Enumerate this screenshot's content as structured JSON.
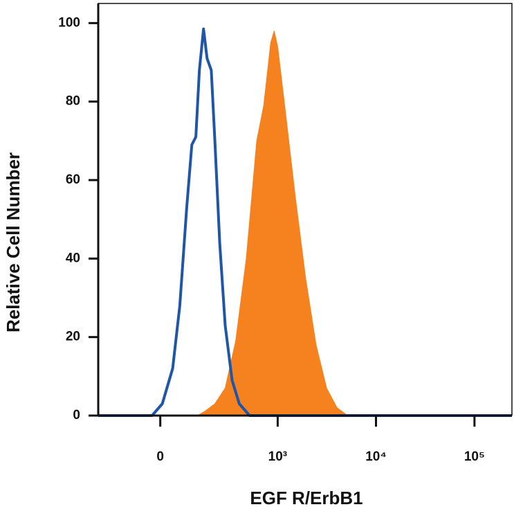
{
  "chart_data": {
    "type": "histogram-overlay",
    "x_label": "EGF R/ErbB1",
    "y_label": "Relative Cell Number",
    "xscale": "asinh",
    "xlim": [
      -260,
      240000
    ],
    "xticks": [
      0,
      {
        "value": 1000,
        "label": "10³"
      },
      {
        "value": 10000,
        "label": "10⁴"
      },
      {
        "value": 100000,
        "label": "10⁵"
      }
    ],
    "ylim": [
      0,
      105
    ],
    "yticks": [
      0,
      20,
      40,
      60,
      80,
      100
    ],
    "series": [
      {
        "color": "#f5821f",
        "fill": true,
        "x": [
          -260,
          126,
          158,
          213,
          280,
          365,
          473,
          608,
          719,
          848,
          920,
          1000,
          1179,
          1509,
          1929,
          2464,
          3150,
          4024,
          5145,
          240000
        ],
        "values": [
          0,
          0,
          1,
          3,
          7,
          19,
          40,
          70,
          79,
          95,
          98,
          94,
          79,
          56,
          35,
          18,
          7,
          2,
          0,
          0
        ]
      },
      {
        "color": "#1f56a8",
        "fill": false,
        "x": [
          -260,
          -25,
          6,
          38,
          61,
          85,
          104,
          120,
          135,
          154,
          171,
          193,
          213,
          243,
          280,
          334,
          399,
          513,
          240000
        ],
        "values": [
          0,
          0,
          3,
          12,
          28,
          53,
          69,
          71,
          88,
          98.5,
          91,
          88,
          70,
          44,
          23,
          9,
          3,
          0,
          0
        ]
      }
    ]
  }
}
